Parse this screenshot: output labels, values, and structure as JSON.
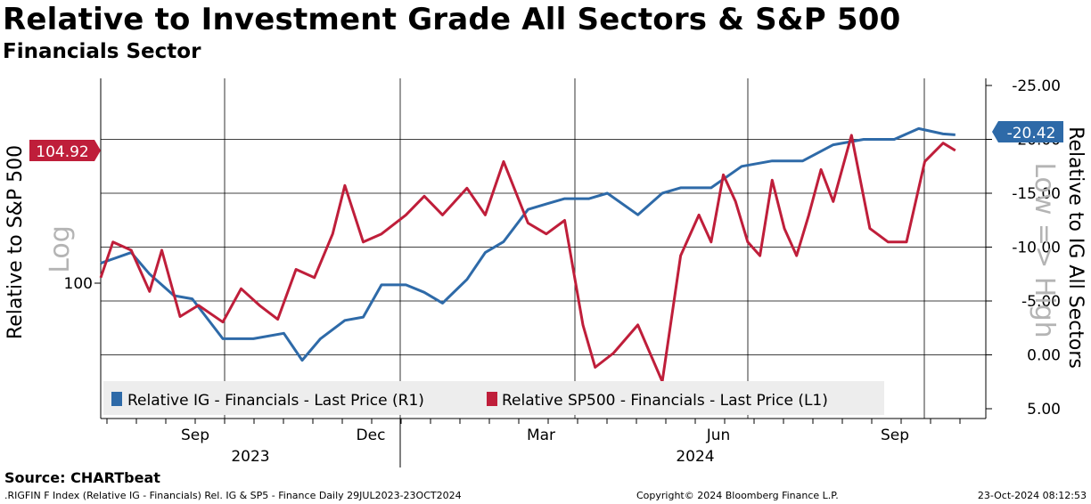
{
  "title": "Relative to Investment Grade All Sectors & S&P 500",
  "subtitle": "Financials Sector",
  "source": "Source: CHARTbeat",
  "footer": {
    "left": ".RIGFIN F Index (Relative IG - Financials) Rel. IG & SP5 - Finance  Daily 29JUL2023-23OCT2024",
    "center": "Copyright© 2024 Bloomberg Finance L.P.",
    "right": "23-Oct-2024 08:12:53"
  },
  "colors": {
    "ig": "#2e6aa8",
    "sp500": "#bf1e3a",
    "grid": "#000000",
    "watermark": "#b4b4b4"
  },
  "chart_data": {
    "type": "line",
    "left_axis": {
      "label": "Relative to S&P 500",
      "scale": "log",
      "ticks": [
        "100"
      ],
      "last_value_label": "104.92"
    },
    "right_axis": {
      "label": "Relative to IG All Sectors",
      "inverted": true,
      "ylim": [
        -25,
        5
      ],
      "ticks": [
        "-25.00",
        "-20.00",
        "-15.00",
        "-10.00",
        "-5.00",
        "0.00",
        "5.00"
      ],
      "last_value_label": "-20.42"
    },
    "watermark": "Low => High",
    "watermark_left": "Log",
    "x_month_labels": [
      "Sep",
      "Dec",
      "Mar",
      "Jun",
      "Sep"
    ],
    "x_year_labels": [
      "2023",
      "2024"
    ],
    "legend": [
      "Relative IG - Financials - Last Price (R1)",
      "Relative SP500 - Financials - Last Price (L1)"
    ],
    "series": [
      {
        "name": "Relative IG - Financials - Last Price (R1)",
        "axis": "right",
        "x": [
          0,
          0.5,
          0.8,
          1.2,
          1.5,
          2.0,
          2.5,
          3.0,
          3.3,
          3.6,
          4.0,
          4.3,
          4.6,
          5.0,
          5.3,
          5.6,
          6.0,
          6.3,
          6.6,
          7.0,
          7.3,
          7.6,
          8.0,
          8.3,
          8.8,
          9.2,
          9.5,
          10.0,
          10.5,
          11.0,
          11.5,
          12.0,
          12.5,
          13.0,
          13.4,
          13.8,
          14.0
        ],
        "values": [
          -8.5,
          -9.5,
          -7.5,
          -5.5,
          -5.2,
          -1.5,
          -1.5,
          -2.0,
          0.5,
          -1.5,
          -3.2,
          -3.5,
          -6.5,
          -6.5,
          -5.8,
          -4.8,
          -7.0,
          -9.5,
          -10.5,
          -13.5,
          -14.0,
          -14.5,
          -14.5,
          -15.0,
          -13.0,
          -15.0,
          -15.5,
          -15.5,
          -17.5,
          -18.0,
          -18.0,
          -19.5,
          -20.0,
          -20.0,
          -21.0,
          -20.5,
          -20.42
        ]
      },
      {
        "name": "Relative SP500 - Financials - Last Price (L1)",
        "axis": "left",
        "x": [
          0,
          0.2,
          0.5,
          0.8,
          1.0,
          1.3,
          1.6,
          2.0,
          2.3,
          2.6,
          2.9,
          3.2,
          3.5,
          3.8,
          4.0,
          4.3,
          4.6,
          5.0,
          5.3,
          5.6,
          6.0,
          6.3,
          6.6,
          7.0,
          7.3,
          7.6,
          7.9,
          8.1,
          8.4,
          8.8,
          9.2,
          9.5,
          9.8,
          10.0,
          10.2,
          10.4,
          10.6,
          10.8,
          11.0,
          11.2,
          11.4,
          11.6,
          11.8,
          12.0,
          12.3,
          12.6,
          12.9,
          13.2,
          13.5,
          13.8,
          14.0
        ],
        "values": [
          100.2,
          101.5,
          101.2,
          99.7,
          101.2,
          98.8,
          99.2,
          98.6,
          99.8,
          99.2,
          98.7,
          100.5,
          100.2,
          101.8,
          103.6,
          101.5,
          101.8,
          102.5,
          103.2,
          102.5,
          103.5,
          102.5,
          104.5,
          102.2,
          101.8,
          102.3,
          98.5,
          97.0,
          97.5,
          98.5,
          96.5,
          101.0,
          102.5,
          101.5,
          104.0,
          103.0,
          101.5,
          101.0,
          103.8,
          102.0,
          101.0,
          102.5,
          104.2,
          103.0,
          105.5,
          102.0,
          101.5,
          101.5,
          104.5,
          105.2,
          104.92
        ]
      }
    ]
  }
}
